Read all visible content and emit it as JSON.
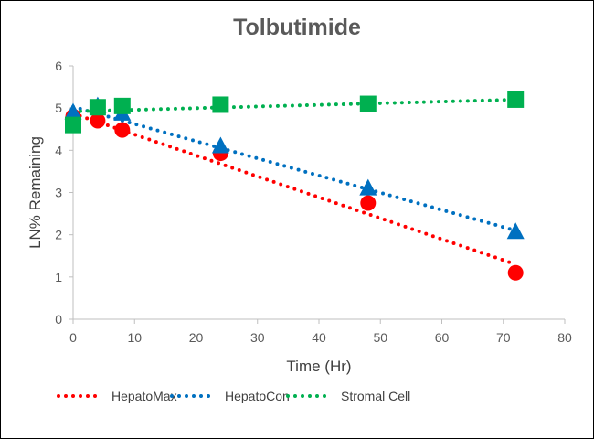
{
  "chart_data": {
    "type": "scatter",
    "title": "Tolbutimide",
    "xlabel": "Time (Hr)",
    "ylabel": "LN% Remaining",
    "xlim": [
      0,
      80
    ],
    "ylim": [
      0,
      6
    ],
    "xticks": [
      0,
      10,
      20,
      30,
      40,
      50,
      60,
      70,
      80
    ],
    "yticks": [
      0,
      1,
      2,
      3,
      4,
      5,
      6
    ],
    "grid": false,
    "legend_position": "bottom",
    "series": [
      {
        "name": "HepatoMax",
        "marker": "circle",
        "color": "#ff0000",
        "x": [
          0,
          4,
          8,
          24,
          48,
          72
        ],
        "y": [
          4.8,
          4.7,
          4.48,
          3.93,
          2.75,
          1.1
        ],
        "trendline": {
          "type": "linear",
          "y_start": 4.87,
          "y_end": 1.3
        }
      },
      {
        "name": "HepatoCon",
        "marker": "triangle",
        "color": "#0070c0",
        "x": [
          0,
          4,
          8,
          24,
          48,
          72
        ],
        "y": [
          4.88,
          5.03,
          4.85,
          4.08,
          3.08,
          2.05
        ],
        "trendline": {
          "type": "linear",
          "y_start": 5.03,
          "y_end": 2.1
        }
      },
      {
        "name": "Stromal Cell",
        "marker": "square",
        "color": "#00b050",
        "x": [
          0,
          4,
          8,
          24,
          48,
          72
        ],
        "y": [
          4.6,
          5.02,
          5.05,
          5.08,
          5.1,
          5.2
        ],
        "trendline": {
          "type": "linear",
          "y_start": 4.92,
          "y_end": 5.2
        }
      }
    ]
  }
}
